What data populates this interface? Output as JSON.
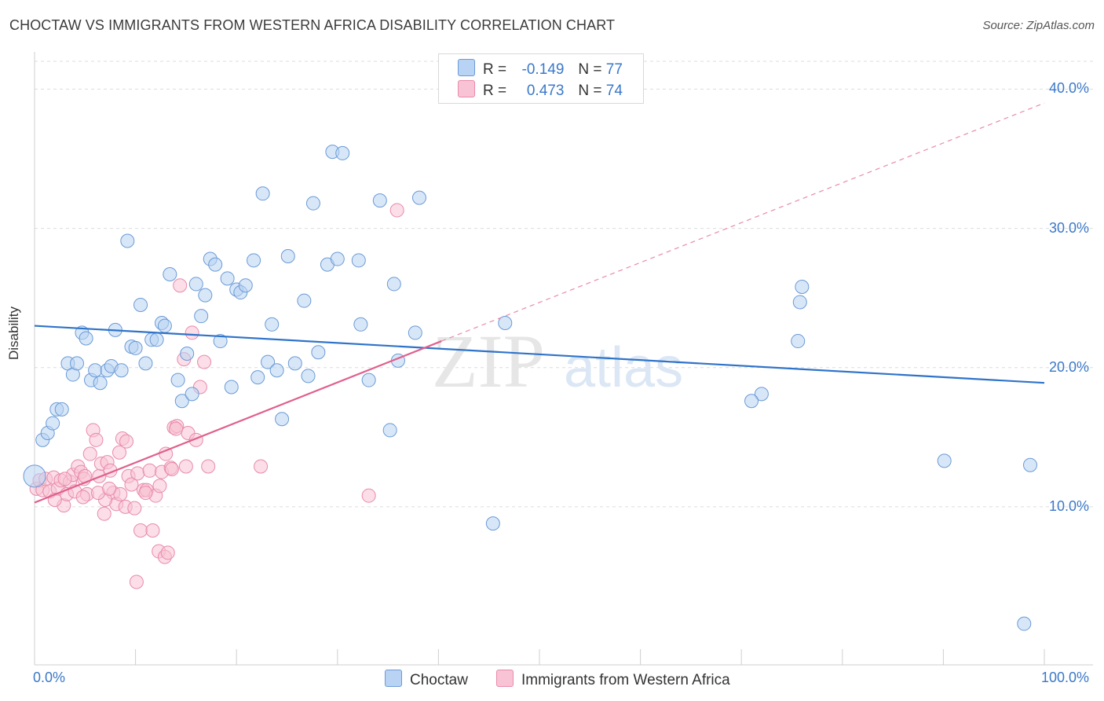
{
  "title": "CHOCTAW VS IMMIGRANTS FROM WESTERN AFRICA DISABILITY CORRELATION CHART",
  "source": "Source: ZipAtlas.com",
  "watermark": {
    "zip": "ZIP",
    "atlas": "atlas"
  },
  "legend": {
    "choctaw": {
      "r_label": "R =",
      "r_value": "-0.149",
      "n_label": "N =",
      "n_value": "77"
    },
    "immigrants": {
      "r_label": "R =",
      "r_value": "0.473",
      "n_label": "N =",
      "n_value": "74"
    }
  },
  "colors": {
    "choctaw_fill": "#b8d3f3",
    "choctaw_stroke": "#6a9ad6",
    "choctaw_line": "#2f73c9",
    "immigrants_fill": "#f8c3d4",
    "immigrants_stroke": "#e98aab",
    "immigrants_line": "#e0608e",
    "grid": "#dcdcdc",
    "axis_text": "#3a78c9"
  },
  "chart_data": {
    "type": "scatter",
    "title": "CHOCTAW VS IMMIGRANTS FROM WESTERN AFRICA DISABILITY CORRELATION CHART",
    "xlabel": "",
    "ylabel": "Disability",
    "xlim": [
      0,
      100
    ],
    "ylim": [
      0,
      42
    ],
    "x_tick_labels": {
      "left": "0.0%",
      "right": "100.0%"
    },
    "y_ticks": [
      {
        "value": 10,
        "label": "10.0%"
      },
      {
        "value": 20,
        "label": "20.0%"
      },
      {
        "value": 30,
        "label": "30.0%"
      },
      {
        "value": 40,
        "label": "40.0%"
      }
    ],
    "grid": true,
    "series": [
      {
        "name": "Choctaw",
        "r": -0.149,
        "n": 77,
        "trend": {
          "x0": 0,
          "y0": 23.0,
          "x1": 100,
          "y1": 18.9
        },
        "points": [
          [
            0.0,
            12.2
          ],
          [
            0.8,
            14.8
          ],
          [
            1.3,
            15.3
          ],
          [
            1.8,
            16.0
          ],
          [
            2.2,
            17.0
          ],
          [
            2.7,
            17.0
          ],
          [
            3.3,
            20.3
          ],
          [
            3.8,
            19.5
          ],
          [
            4.2,
            20.3
          ],
          [
            4.7,
            22.5
          ],
          [
            5.1,
            22.1
          ],
          [
            5.6,
            19.1
          ],
          [
            6.0,
            19.8
          ],
          [
            6.5,
            18.9
          ],
          [
            7.2,
            19.8
          ],
          [
            7.6,
            20.1
          ],
          [
            8.0,
            22.7
          ],
          [
            8.6,
            19.8
          ],
          [
            9.2,
            29.1
          ],
          [
            9.6,
            21.5
          ],
          [
            10.0,
            21.4
          ],
          [
            10.5,
            24.5
          ],
          [
            11.0,
            20.3
          ],
          [
            11.6,
            22.0
          ],
          [
            12.1,
            22.0
          ],
          [
            12.6,
            23.2
          ],
          [
            12.9,
            23.0
          ],
          [
            13.4,
            26.7
          ],
          [
            14.2,
            19.1
          ],
          [
            14.6,
            17.6
          ],
          [
            15.1,
            21.0
          ],
          [
            15.6,
            18.1
          ],
          [
            16.0,
            26.0
          ],
          [
            16.5,
            23.7
          ],
          [
            16.9,
            25.2
          ],
          [
            17.4,
            27.8
          ],
          [
            17.9,
            27.4
          ],
          [
            18.4,
            21.9
          ],
          [
            19.1,
            26.4
          ],
          [
            19.5,
            18.6
          ],
          [
            20.0,
            25.6
          ],
          [
            20.4,
            25.4
          ],
          [
            20.9,
            25.9
          ],
          [
            21.7,
            27.7
          ],
          [
            22.1,
            19.3
          ],
          [
            22.6,
            32.5
          ],
          [
            23.1,
            20.4
          ],
          [
            23.5,
            23.1
          ],
          [
            24.0,
            19.8
          ],
          [
            24.5,
            16.3
          ],
          [
            25.1,
            28.0
          ],
          [
            25.8,
            20.3
          ],
          [
            26.7,
            24.8
          ],
          [
            27.1,
            19.4
          ],
          [
            27.6,
            31.8
          ],
          [
            28.1,
            21.1
          ],
          [
            29.0,
            27.4
          ],
          [
            29.5,
            35.5
          ],
          [
            30.0,
            27.8
          ],
          [
            30.5,
            35.4
          ],
          [
            32.1,
            27.7
          ],
          [
            32.3,
            23.1
          ],
          [
            33.1,
            19.1
          ],
          [
            34.2,
            32.0
          ],
          [
            35.2,
            15.5
          ],
          [
            35.6,
            26.0
          ],
          [
            36.0,
            20.5
          ],
          [
            37.7,
            22.5
          ],
          [
            38.1,
            32.2
          ],
          [
            45.4,
            8.8
          ],
          [
            46.6,
            23.2
          ],
          [
            75.6,
            21.9
          ],
          [
            75.8,
            24.7
          ],
          [
            76.0,
            25.8
          ],
          [
            72.0,
            18.1
          ],
          [
            71.0,
            17.6
          ],
          [
            90.1,
            13.3
          ],
          [
            98.0,
            1.6
          ],
          [
            98.6,
            13.0
          ]
        ]
      },
      {
        "name": "Immigrants from Western Africa",
        "r": 0.473,
        "n": 74,
        "trend": {
          "x0": 0,
          "y0": 10.3,
          "x1": 40.3,
          "y1": 21.9
        },
        "trend_dashed": {
          "x0": 40.3,
          "y0": 21.9,
          "x1": 100,
          "y1": 39.0
        },
        "points": [
          [
            0.2,
            11.3
          ],
          [
            0.5,
            11.9
          ],
          [
            0.8,
            11.2
          ],
          [
            1.1,
            12.0
          ],
          [
            1.5,
            11.1
          ],
          [
            1.9,
            12.1
          ],
          [
            2.3,
            11.3
          ],
          [
            2.6,
            11.9
          ],
          [
            2.9,
            10.1
          ],
          [
            3.2,
            10.9
          ],
          [
            3.5,
            11.8
          ],
          [
            3.8,
            12.3
          ],
          [
            4.0,
            11.1
          ],
          [
            4.3,
            12.9
          ],
          [
            4.6,
            12.5
          ],
          [
            4.9,
            12.0
          ],
          [
            5.2,
            10.9
          ],
          [
            5.5,
            13.8
          ],
          [
            5.8,
            15.5
          ],
          [
            6.1,
            14.8
          ],
          [
            6.4,
            12.2
          ],
          [
            6.6,
            13.1
          ],
          [
            6.9,
            9.5
          ],
          [
            7.2,
            13.2
          ],
          [
            7.5,
            12.6
          ],
          [
            7.8,
            11.0
          ],
          [
            8.1,
            10.2
          ],
          [
            8.4,
            13.9
          ],
          [
            8.7,
            14.9
          ],
          [
            9.0,
            10.0
          ],
          [
            9.3,
            12.2
          ],
          [
            9.6,
            11.6
          ],
          [
            9.9,
            9.9
          ],
          [
            10.2,
            12.4
          ],
          [
            10.5,
            8.3
          ],
          [
            10.8,
            11.2
          ],
          [
            11.1,
            11.2
          ],
          [
            11.4,
            12.6
          ],
          [
            11.7,
            8.3
          ],
          [
            12.0,
            10.8
          ],
          [
            12.3,
            6.8
          ],
          [
            12.6,
            12.5
          ],
          [
            12.9,
            6.4
          ],
          [
            13.2,
            6.7
          ],
          [
            13.5,
            12.8
          ],
          [
            13.8,
            15.7
          ],
          [
            14.1,
            15.8
          ],
          [
            14.4,
            25.9
          ],
          [
            14.8,
            20.6
          ],
          [
            15.2,
            15.3
          ],
          [
            15.6,
            22.5
          ],
          [
            16.0,
            14.8
          ],
          [
            16.4,
            18.6
          ],
          [
            16.8,
            20.4
          ],
          [
            17.2,
            12.9
          ],
          [
            7.0,
            10.5
          ],
          [
            8.5,
            10.9
          ],
          [
            9.1,
            14.7
          ],
          [
            10.1,
            4.6
          ],
          [
            11.0,
            11.0
          ],
          [
            12.4,
            11.5
          ],
          [
            13.0,
            13.8
          ],
          [
            13.6,
            12.7
          ],
          [
            14.0,
            15.6
          ],
          [
            15.0,
            12.9
          ],
          [
            22.4,
            12.9
          ],
          [
            33.1,
            10.8
          ],
          [
            35.9,
            31.3
          ],
          [
            4.8,
            10.7
          ],
          [
            6.3,
            11.0
          ],
          [
            3.0,
            12.0
          ],
          [
            2.0,
            10.5
          ],
          [
            5.0,
            12.2
          ],
          [
            7.4,
            11.3
          ]
        ]
      }
    ]
  },
  "bottom_legend": {
    "choctaw": "Choctaw",
    "immigrants": "Immigrants from Western Africa"
  }
}
